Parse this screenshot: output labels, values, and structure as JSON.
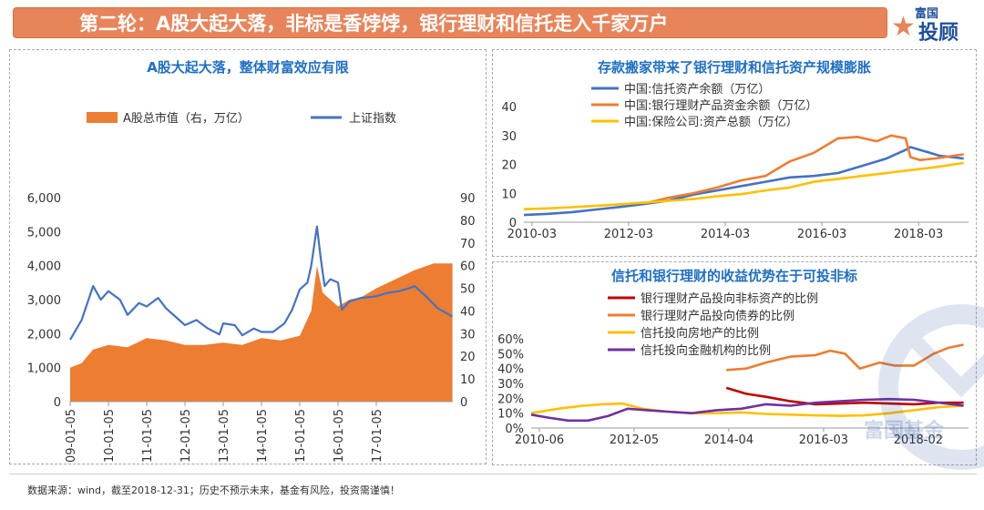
{
  "banner": {
    "title": "第二轮：A股大起大落，非标是香饽饽，银行理财和信托走入千家万户"
  },
  "logo": {
    "line1": "富国",
    "line2": "投顾"
  },
  "watermark": {
    "text": "富国基金"
  },
  "footer": {
    "source": "数据来源：wind，截至2018-12-31；历史不预示未来，基金有风险，投资需谨慎！"
  },
  "colors": {
    "orange": "#ed7d31",
    "blue": "#4472c4",
    "yellow": "#ffc000",
    "red": "#c00000",
    "purple": "#7030a0",
    "title_blue": "#1f6fc6",
    "banner": "#e8845a"
  },
  "chart_data": [
    {
      "type": "area",
      "title": "A股大起大落，整体财富效应有限",
      "legend": [
        "A股总市值（右，万亿）",
        "上证指数"
      ],
      "legend_position": "top",
      "x_ticks": [
        "2009-01-05",
        "2010-01-05",
        "2011-01-05",
        "2012-01-05",
        "2013-01-05",
        "2014-01-05",
        "2015-01-05",
        "2016-01-05",
        "2017-01-05"
      ],
      "x_range": [
        2009.0,
        2019.0
      ],
      "left_axis": {
        "ticks": [
          "6,000",
          "5,000",
          "4,000",
          "3,000",
          "2,000",
          "1,000",
          "0"
        ],
        "ylim": [
          0,
          6000
        ]
      },
      "right_axis": {
        "ticks": [
          "90",
          "80",
          "70",
          "60",
          "50",
          "40",
          "30",
          "20",
          "10",
          "0"
        ],
        "ylim": [
          0,
          90
        ]
      },
      "series": [
        {
          "name": "A股总市值（右，万亿）",
          "axis": "right",
          "kind": "area",
          "x": [
            2009.0,
            2009.3,
            2009.6,
            2010.0,
            2010.5,
            2011.0,
            2011.5,
            2012.0,
            2012.5,
            2013.0,
            2013.5,
            2014.0,
            2014.5,
            2015.0,
            2015.3,
            2015.45,
            2015.6,
            2015.8,
            2016.0,
            2016.3,
            2016.6,
            2017.0,
            2017.5,
            2018.0,
            2018.5,
            2018.99
          ],
          "values": [
            15,
            17,
            23,
            25,
            24,
            28,
            27,
            25,
            25,
            26,
            25,
            28,
            27,
            29,
            40,
            60,
            48,
            45,
            42,
            45,
            46,
            50,
            54,
            58,
            61,
            61
          ]
        },
        {
          "name": "上证指数",
          "axis": "left",
          "kind": "line",
          "x": [
            2009.0,
            2009.3,
            2009.6,
            2009.8,
            2010.0,
            2010.3,
            2010.5,
            2010.8,
            2011.0,
            2011.3,
            2011.5,
            2011.8,
            2012.0,
            2012.3,
            2012.6,
            2012.9,
            2013.0,
            2013.3,
            2013.5,
            2013.8,
            2014.0,
            2014.3,
            2014.6,
            2014.8,
            2015.0,
            2015.2,
            2015.3,
            2015.45,
            2015.55,
            2015.65,
            2015.8,
            2016.0,
            2016.1,
            2016.3,
            2016.6,
            2017.0,
            2017.3,
            2017.6,
            2017.9,
            2018.0,
            2018.3,
            2018.6,
            2018.99
          ],
          "values": [
            1820,
            2400,
            3400,
            3000,
            3250,
            3000,
            2550,
            2900,
            2800,
            3050,
            2750,
            2450,
            2250,
            2400,
            2150,
            1980,
            2300,
            2250,
            1950,
            2150,
            2050,
            2050,
            2300,
            2700,
            3300,
            3500,
            4000,
            5150,
            4200,
            3400,
            3600,
            3500,
            2700,
            2950,
            3050,
            3100,
            3200,
            3250,
            3350,
            3400,
            3100,
            2750,
            2500
          ]
        }
      ]
    },
    {
      "type": "line",
      "title": "存款搬家带来了银行理财和信托资产规模膨胀",
      "legend_position": "top",
      "x_ticks": [
        "2010-03",
        "2012-03",
        "2014-03",
        "2016-03",
        "2018-03"
      ],
      "x_range": [
        2010.0,
        2019.2
      ],
      "y_ticks": [
        "40",
        "30",
        "20",
        "10",
        "0"
      ],
      "ylim": [
        0,
        40
      ],
      "series": [
        {
          "name": "中国:信托资产余额（万亿）",
          "x": [
            2010.0,
            2010.5,
            2011.0,
            2011.5,
            2012.0,
            2012.5,
            2013.0,
            2013.5,
            2014.0,
            2014.5,
            2015.0,
            2015.5,
            2016.0,
            2016.5,
            2017.0,
            2017.5,
            2017.9,
            2018.0,
            2018.3,
            2018.6,
            2019.1
          ],
          "values": [
            2.5,
            2.9,
            3.5,
            4.4,
            5.3,
            6.3,
            7.5,
            9.5,
            11,
            12.5,
            14,
            15.5,
            16,
            17,
            19.5,
            22,
            25,
            26,
            24.5,
            23,
            22
          ]
        },
        {
          "name": "中国:银行理财产品资金余额（万亿）",
          "x": [
            2012.5,
            2013.0,
            2013.5,
            2014.0,
            2014.5,
            2015.0,
            2015.5,
            2016.0,
            2016.5,
            2016.9,
            2017.3,
            2017.6,
            2017.9,
            2018.0,
            2018.2,
            2018.5,
            2018.9,
            2019.1
          ],
          "values": [
            6.5,
            8.5,
            10,
            12,
            14.5,
            16,
            21,
            24,
            29,
            29.5,
            28,
            30,
            29,
            22.5,
            21.5,
            22,
            23,
            23.5
          ]
        },
        {
          "name": "中国:保险公司:资产总额（万亿）",
          "x": [
            2010.0,
            2010.5,
            2011.0,
            2011.5,
            2012.0,
            2012.5,
            2013.0,
            2013.5,
            2014.0,
            2014.5,
            2015.0,
            2015.5,
            2016.0,
            2016.5,
            2017.0,
            2017.5,
            2018.0,
            2018.5,
            2019.1
          ],
          "values": [
            4.5,
            4.8,
            5.2,
            5.7,
            6.2,
            6.8,
            7.4,
            8,
            9,
            9.7,
            11,
            12,
            14,
            15,
            16,
            17,
            18,
            19,
            20.5
          ]
        }
      ]
    },
    {
      "type": "line",
      "title": "信托和银行理财的收益优势在于可投非标",
      "legend_position": "top-left",
      "x_ticks": [
        "2010-06",
        "2012-05",
        "2014-04",
        "2016-03",
        "2018-02"
      ],
      "x_range": [
        2010.25,
        2019.1
      ],
      "y_ticks": [
        "60%",
        "50%",
        "40%",
        "30%",
        "20%",
        "10%",
        "0%"
      ],
      "ylim": [
        0,
        60
      ],
      "series": [
        {
          "name": "银行理财产品投向非标资产的比例",
          "x": [
            2014.2,
            2014.6,
            2015.0,
            2015.5,
            2016.0,
            2016.5,
            2017.0,
            2017.5,
            2018.0,
            2018.5,
            2019.0
          ],
          "values": [
            27,
            23,
            21,
            18,
            16,
            16.5,
            17,
            16.5,
            16,
            17,
            17
          ]
        },
        {
          "name": "银行理财产品投向债券的比例",
          "x": [
            2014.2,
            2014.6,
            2015.0,
            2015.5,
            2016.0,
            2016.3,
            2016.6,
            2016.9,
            2017.3,
            2017.6,
            2018.0,
            2018.4,
            2018.7,
            2019.0
          ],
          "values": [
            39,
            40,
            44,
            48,
            49,
            52,
            50,
            40,
            44,
            42,
            42,
            50,
            54,
            56
          ]
        },
        {
          "name": "信托投向房地产的比例",
          "x": [
            2010.25,
            2010.8,
            2011.3,
            2011.7,
            2012.1,
            2012.5,
            2013.0,
            2013.5,
            2014.0,
            2014.5,
            2015.0,
            2015.5,
            2016.0,
            2016.5,
            2017.0,
            2017.5,
            2018.0,
            2018.5,
            2019.0
          ],
          "values": [
            10,
            13,
            15,
            16,
            16.5,
            13,
            11,
            10,
            10,
            10.5,
            9.5,
            9,
            8.5,
            8.2,
            8.5,
            10,
            12,
            14,
            15
          ]
        },
        {
          "name": "信托投向金融机构的比例",
          "x": [
            2010.25,
            2010.6,
            2011.0,
            2011.4,
            2011.8,
            2012.2,
            2012.6,
            2013.0,
            2013.5,
            2014.0,
            2014.5,
            2015.0,
            2015.5,
            2016.0,
            2016.5,
            2017.0,
            2017.5,
            2018.0,
            2018.5,
            2019.0
          ],
          "values": [
            9,
            7,
            5,
            5,
            8,
            13,
            12,
            11,
            10,
            12,
            13,
            16,
            15,
            17,
            18,
            19,
            19.5,
            19,
            17,
            15
          ]
        }
      ]
    }
  ]
}
